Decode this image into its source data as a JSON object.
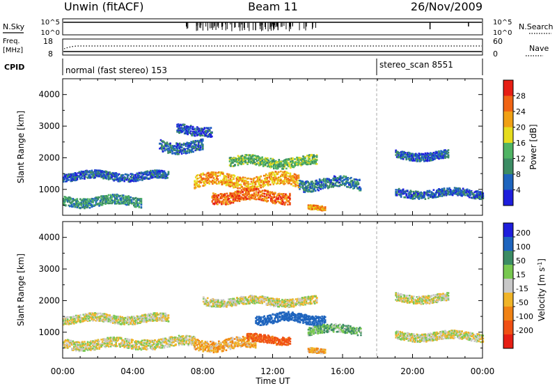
{
  "header": {
    "station": "Unwin (fitACF)",
    "beam": "Beam 11",
    "date": "26/Nov/2009"
  },
  "noise_panel": {
    "left_label": "N.Sky",
    "left_ticks": [
      "10^5",
      "10^0"
    ],
    "right_ticks": [
      "10^5",
      "10^0"
    ],
    "right_label": "N.Search"
  },
  "freq_panel": {
    "left_label_1": "Freq.",
    "left_label_2": "[MHz]",
    "left_ticks": [
      "18",
      "8"
    ],
    "right_ticks": [
      "60",
      "0"
    ],
    "right_label": "Nave"
  },
  "cpid_panel": {
    "label": "CPID",
    "mode_1": "normal (fast stereo) 153",
    "mode_2": "stereo_scan 8551"
  },
  "chart_data": [
    {
      "type": "heatmap",
      "parameter": "Power",
      "ylabel": "Slant Range [km]",
      "xlabel": "",
      "ylim": [
        180,
        4500
      ],
      "yticks": [
        1000,
        2000,
        3000,
        4000
      ],
      "xlim": [
        "00:00",
        "24:00"
      ],
      "colorbar_label": "Power [dB]",
      "colorbar_ticks": [
        4,
        8,
        12,
        16,
        20,
        24,
        28
      ],
      "colorbar_range": [
        0,
        32
      ],
      "colors": [
        "#1e1edc",
        "#1e64be",
        "#3c8c64",
        "#50b464",
        "#e6dc1e",
        "#f0a014",
        "#f06414",
        "#e61e14"
      ],
      "echo_regions": [
        {
          "t_start": 0.0,
          "t_end": 4.5,
          "r_center": 650,
          "r_width": 300,
          "power": 10
        },
        {
          "t_start": 0.0,
          "t_end": 6.0,
          "r_center": 1450,
          "r_width": 250,
          "power": 6
        },
        {
          "t_start": 5.5,
          "t_end": 8.0,
          "r_center": 2400,
          "r_width": 350,
          "power": 7
        },
        {
          "t_start": 6.5,
          "t_end": 8.5,
          "r_center": 2900,
          "r_width": 300,
          "power": 5
        },
        {
          "t_start": 7.5,
          "t_end": 13.5,
          "r_center": 1300,
          "r_width": 400,
          "power": 22
        },
        {
          "t_start": 8.5,
          "t_end": 13.0,
          "r_center": 800,
          "r_width": 350,
          "power": 26
        },
        {
          "t_start": 9.5,
          "t_end": 14.5,
          "r_center": 1900,
          "r_width": 300,
          "power": 14
        },
        {
          "t_start": 13.5,
          "t_end": 17.0,
          "r_center": 1200,
          "r_width": 350,
          "power": 8
        },
        {
          "t_start": 14.0,
          "t_end": 15.0,
          "r_center": 450,
          "r_width": 150,
          "power": 24
        },
        {
          "t_start": 19.0,
          "t_end": 22.0,
          "r_center": 2100,
          "r_width": 250,
          "power": 6
        },
        {
          "t_start": 19.0,
          "t_end": 24.0,
          "r_center": 900,
          "r_width": 250,
          "power": 6
        }
      ]
    },
    {
      "type": "heatmap",
      "parameter": "Velocity",
      "ylabel": "Slant Range [km]",
      "xlabel": "Time UT",
      "ylim": [
        180,
        4500
      ],
      "yticks": [
        1000,
        2000,
        3000,
        4000
      ],
      "xlim": [
        "00:00",
        "24:00"
      ],
      "xticks": [
        "00:00",
        "04:00",
        "08:00",
        "12:00",
        "16:00",
        "20:00",
        "00:00"
      ],
      "colorbar_label": "Velocity [m s^-1]",
      "colorbar_ticks": [
        200,
        100,
        50,
        15,
        -15,
        -50,
        -100,
        -200
      ],
      "colors": [
        "#1e1edc",
        "#1e64be",
        "#3c8c64",
        "#78c850",
        "#c8c8c8",
        "#f0b428",
        "#f08214",
        "#f05014",
        "#e61e14"
      ],
      "echo_regions": [
        {
          "t_start": 0.0,
          "t_end": 4.5,
          "r_center": 650,
          "r_width": 300,
          "velocity": 0
        },
        {
          "t_start": 0.0,
          "t_end": 6.0,
          "r_center": 1450,
          "r_width": 250,
          "velocity": 0
        },
        {
          "t_start": 4.5,
          "t_end": 7.5,
          "r_center": 700,
          "r_width": 300,
          "velocity": 0
        },
        {
          "t_start": 7.5,
          "t_end": 11.0,
          "r_center": 650,
          "r_width": 350,
          "velocity": -40
        },
        {
          "t_start": 10.5,
          "t_end": 13.0,
          "r_center": 800,
          "r_width": 250,
          "velocity": -120
        },
        {
          "t_start": 11.0,
          "t_end": 15.0,
          "r_center": 1450,
          "r_width": 300,
          "velocity": 150
        },
        {
          "t_start": 14.0,
          "t_end": 17.0,
          "r_center": 1100,
          "r_width": 250,
          "velocity": 40
        },
        {
          "t_start": 8.0,
          "t_end": 14.5,
          "r_center": 2000,
          "r_width": 250,
          "velocity": 0
        },
        {
          "t_start": 14.0,
          "t_end": 15.0,
          "r_center": 450,
          "r_width": 150,
          "velocity": -40
        },
        {
          "t_start": 19.0,
          "t_end": 22.0,
          "r_center": 2100,
          "r_width": 250,
          "velocity": 0
        },
        {
          "t_start": 19.0,
          "t_end": 24.0,
          "r_center": 900,
          "r_width": 250,
          "velocity": 0
        }
      ]
    }
  ],
  "mode_change_time": 18.0
}
